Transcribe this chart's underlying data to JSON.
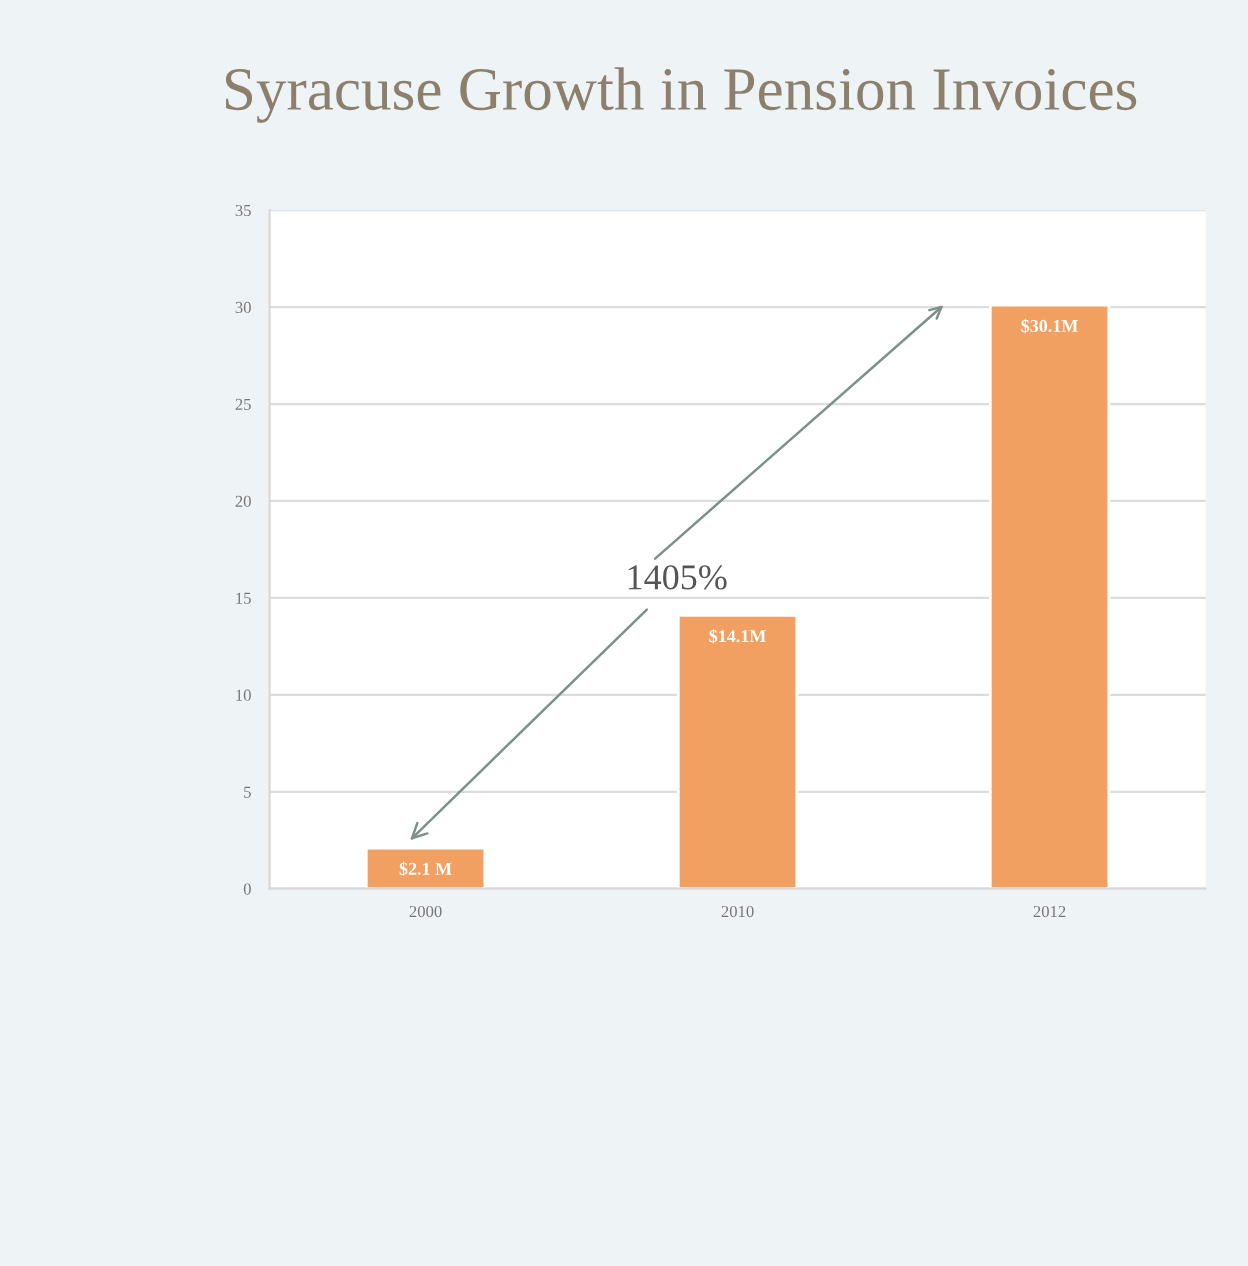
{
  "chart_data": {
    "type": "bar",
    "title": "Syracuse Growth in Pension Invoices",
    "categories": [
      "2000",
      "2010",
      "2012"
    ],
    "values": [
      2.1,
      14.1,
      30.1
    ],
    "value_labels": [
      "$2.1 M",
      "$14.1M",
      "$30.1M"
    ],
    "color": "#f2a062",
    "ylim": [
      0,
      35
    ],
    "yticks": [
      0,
      5,
      10,
      15,
      20,
      25,
      30,
      35
    ],
    "grid": "y",
    "legend": false,
    "annotations": [
      "1405%"
    ]
  }
}
